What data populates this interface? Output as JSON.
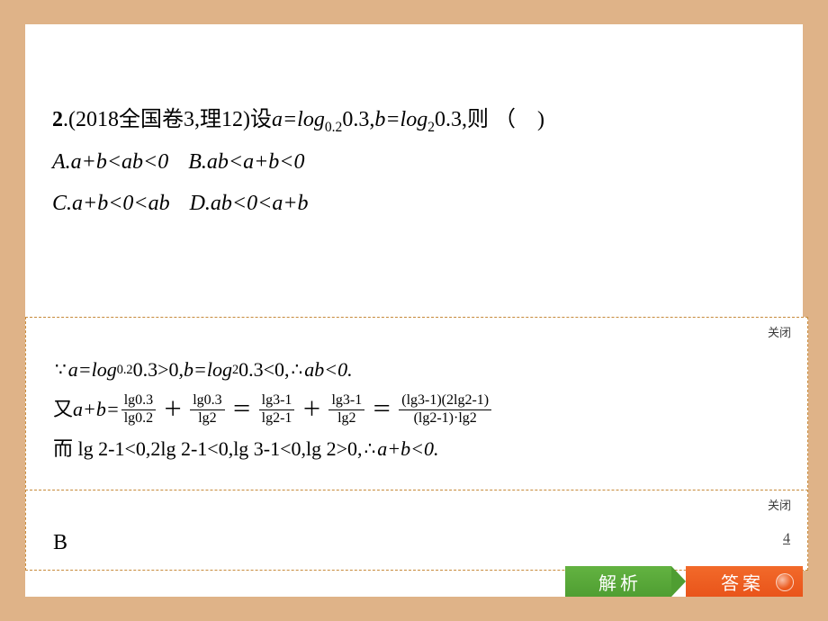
{
  "colors": {
    "page_bg": "#dfb388",
    "slide_bg": "#ffffff",
    "text": "#000000",
    "panel_border": "#c78a3a",
    "btn_green_top": "#63b341",
    "btn_green_bottom": "#4f9e32",
    "btn_orange_top": "#f26a2a",
    "btn_orange_bottom": "#e9541a",
    "close_text": "#3a3a3a"
  },
  "question": {
    "number": "2",
    "source_prefix": ".(2018全国卷3,理12)设",
    "expr_a": "a=log",
    "a_base": "0.2",
    "a_arg": "0.3,",
    "expr_b": "b=log",
    "b_base": "2",
    "b_arg": "0.3,则",
    "paren_open": "（",
    "paren_close": ")",
    "options": {
      "A": "A.a+b<ab<0",
      "B": "B.ab<a+b<0",
      "C": "C.a+b<0<ab",
      "D": "D.ab<0<a+b"
    }
  },
  "panel": {
    "close": "关闭"
  },
  "explanation": {
    "line1_pre": "∵",
    "line1_a": "a=log",
    "line1_a_base": "0.2",
    "line1_a_rest": "0.3>0,",
    "line1_b": "b=log",
    "line1_b_base": "2",
    "line1_b_rest": "0.3<0,",
    "line1_therefore": "∴",
    "line1_end": "ab<0.",
    "line2_pre": "又 ",
    "line2_lhs": "a+b=",
    "frac1": {
      "num": "lg0.3",
      "den": "lg0.2"
    },
    "plus": "＋",
    "frac2": {
      "num": "lg0.3",
      "den": "lg2"
    },
    "eq": "＝",
    "frac3": {
      "num": "lg3-1",
      "den": "lg2-1"
    },
    "frac4": {
      "num": "lg3-1",
      "den": "lg2"
    },
    "frac5": {
      "num": "(lg3-1)(2lg2-1)",
      "den": "(lg2-1)·lg2"
    },
    "line3": "而 lg 2-1<0,2lg 2-1<0,lg 3-1<0,lg 2>0,",
    "line3_therefore": "∴",
    "line3_end": "a+b<0."
  },
  "answer": {
    "value": "B"
  },
  "buttons": {
    "analysis": "解析",
    "answer": "答案"
  },
  "page_number": "4"
}
